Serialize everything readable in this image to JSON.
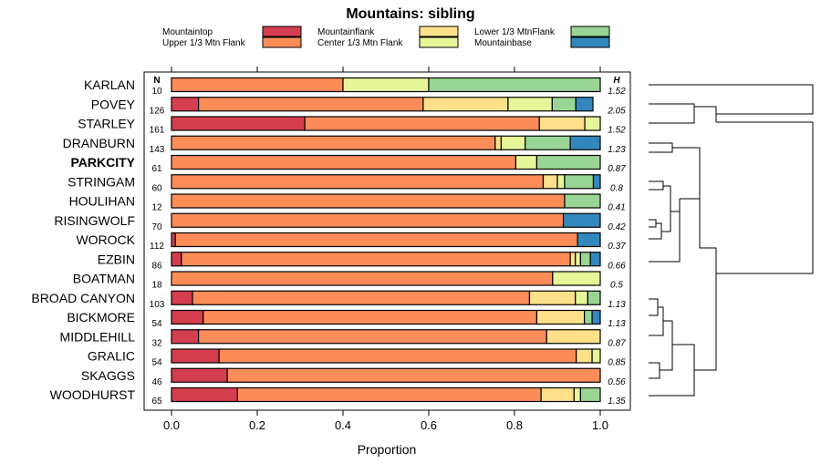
{
  "chart_data": {
    "type": "bar",
    "orientation": "horizontal-stacked",
    "title": "Mountains: sibling",
    "xlabel": "Proportion",
    "xlim": [
      0,
      1
    ],
    "ticks": [
      "0.0",
      "0.2",
      "0.4",
      "0.6",
      "0.8",
      "1.0"
    ],
    "tick_values": [
      0,
      0.2,
      0.4,
      0.6,
      0.8,
      1.0
    ],
    "n_header": "N",
    "h_header": "H",
    "legend": [
      {
        "name": "Mountaintop",
        "color": "#d53e4f"
      },
      {
        "name": "Upper 1/3 Mtn Flank",
        "color": "#fc8d59"
      },
      {
        "name": "Mountainflank",
        "color": "#fee08b"
      },
      {
        "name": "Center 1/3 Mtn Flank",
        "color": "#e6f598"
      },
      {
        "name": "Lower 1/3 MtnFlank",
        "color": "#99d594"
      },
      {
        "name": "Mountainbase",
        "color": "#3288bd"
      }
    ],
    "rows": [
      {
        "label": "KARLAN",
        "n": "10",
        "h": "1.52",
        "bold": false,
        "values": [
          0,
          0.4,
          0,
          0.2,
          0.4,
          0
        ]
      },
      {
        "label": "POVEY",
        "n": "126",
        "h": "2.05",
        "bold": false,
        "values": [
          0.063,
          0.524,
          0.198,
          0.103,
          0.055,
          0.04
        ]
      },
      {
        "label": "STARLEY",
        "n": "161",
        "h": "1.52",
        "bold": false,
        "values": [
          0.311,
          0.547,
          0.106,
          0.036,
          0,
          0
        ]
      },
      {
        "label": "DRANBURN",
        "n": "143",
        "h": "1.23",
        "bold": false,
        "values": [
          0,
          0.755,
          0.014,
          0.056,
          0.105,
          0.07
        ]
      },
      {
        "label": "PARKCITY",
        "n": "61",
        "h": "0.87",
        "bold": true,
        "values": [
          0,
          0.803,
          0,
          0.049,
          0.148,
          0
        ]
      },
      {
        "label": "STRINGAM",
        "n": "60",
        "h": "0.8",
        "bold": false,
        "values": [
          0,
          0.867,
          0.033,
          0.017,
          0.067,
          0.016
        ]
      },
      {
        "label": "HOULIHAN",
        "n": "12",
        "h": "0.41",
        "bold": false,
        "values": [
          0,
          0.917,
          0,
          0,
          0.083,
          0
        ]
      },
      {
        "label": "RISINGWOLF",
        "n": "70",
        "h": "0.42",
        "bold": false,
        "values": [
          0,
          0.914,
          0,
          0,
          0,
          0.086
        ]
      },
      {
        "label": "WOROCK",
        "n": "112",
        "h": "0.37",
        "bold": false,
        "values": [
          0.009,
          0.938,
          0,
          0,
          0,
          0.053
        ]
      },
      {
        "label": "EZBIN",
        "n": "86",
        "h": "0.66",
        "bold": false,
        "values": [
          0.023,
          0.907,
          0.012,
          0.012,
          0.023,
          0.023
        ]
      },
      {
        "label": "BOATMAN",
        "n": "18",
        "h": "0.5",
        "bold": false,
        "values": [
          0,
          0.889,
          0,
          0.111,
          0,
          0
        ]
      },
      {
        "label": "BROAD CANYON",
        "n": "103",
        "h": "1.13",
        "bold": false,
        "values": [
          0.049,
          0.786,
          0.107,
          0.029,
          0.029,
          0
        ]
      },
      {
        "label": "BICKMORE",
        "n": "54",
        "h": "1.13",
        "bold": false,
        "values": [
          0.074,
          0.778,
          0.111,
          0,
          0.018,
          0.019
        ]
      },
      {
        "label": "MIDDLEHILL",
        "n": "32",
        "h": "0.87",
        "bold": false,
        "values": [
          0.063,
          0.812,
          0.125,
          0,
          0,
          0
        ]
      },
      {
        "label": "GRALIC",
        "n": "54",
        "h": "0.85",
        "bold": false,
        "values": [
          0.111,
          0.833,
          0.037,
          0.019,
          0,
          0
        ]
      },
      {
        "label": "SKAGGS",
        "n": "46",
        "h": "0.56",
        "bold": false,
        "values": [
          0.13,
          0.87,
          0,
          0,
          0,
          0
        ]
      },
      {
        "label": "WOODHURST",
        "n": "65",
        "h": "1.35",
        "bold": false,
        "values": [
          0.154,
          0.708,
          0.077,
          0.015,
          0.046,
          0
        ]
      }
    ]
  }
}
